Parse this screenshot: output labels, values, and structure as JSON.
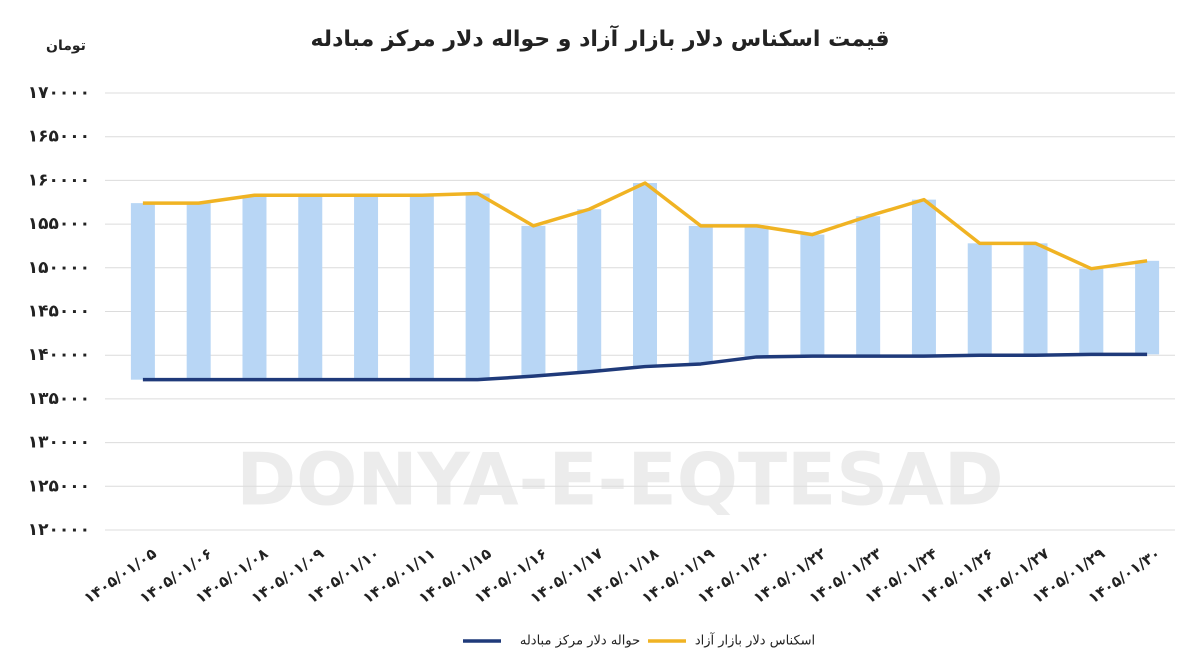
{
  "chart_data": {
    "type": "line",
    "title": "قیمت اسکناس دلار بازار آزاد و حواله دلار مرکز مبادله",
    "ylabel": "تومان",
    "watermark": "DONYA-E-EQTESAD",
    "categories": [
      "۱۴۰۵/۰۱/۰۵",
      "۱۴۰۵/۰۱/۰۶",
      "۱۴۰۵/۰۱/۰۸",
      "۱۴۰۵/۰۱/۰۹",
      "۱۴۰۵/۰۱/۱۰",
      "۱۴۰۵/۰۱/۱۱",
      "۱۴۰۵/۰۱/۱۵",
      "۱۴۰۵/۰۱/۱۶",
      "۱۴۰۵/۰۱/۱۷",
      "۱۴۰۵/۰۱/۱۸",
      "۱۴۰۵/۰۱/۱۹",
      "۱۴۰۵/۰۱/۲۰",
      "۱۴۰۵/۰۱/۲۲",
      "۱۴۰۵/۰۱/۲۳",
      "۱۴۰۵/۰۱/۲۴",
      "۱۴۰۵/۰۱/۲۶",
      "۱۴۰۵/۰۱/۲۷",
      "۱۴۰۵/۰۱/۲۹",
      "۱۴۰۵/۰۱/۳۰"
    ],
    "series": [
      {
        "name": "حواله دلار مرکز مبادله",
        "color": "#1f3a7a",
        "values": [
          137200,
          137200,
          137200,
          137200,
          137200,
          137200,
          137200,
          137600,
          138100,
          138700,
          139000,
          139800,
          139900,
          139900,
          139900,
          140000,
          140000,
          140100,
          140100
        ]
      },
      {
        "name": "اسکناس دلار بازار آزاد",
        "color": "#f0b323",
        "values": [
          157400,
          157400,
          158300,
          158300,
          158300,
          158300,
          158500,
          154800,
          156700,
          159700,
          154800,
          154800,
          153800,
          155900,
          157800,
          152800,
          152800,
          149900,
          150800
        ]
      }
    ],
    "range_bar_color": "#b8d6f5",
    "ylim": [
      120000,
      170000
    ],
    "yticks": [
      {
        "value": 120000,
        "label": "۱۲۰۰۰۰"
      },
      {
        "value": 125000,
        "label": "۱۲۵۰۰۰"
      },
      {
        "value": 130000,
        "label": "۱۳۰۰۰۰"
      },
      {
        "value": 135000,
        "label": "۱۳۵۰۰۰"
      },
      {
        "value": 140000,
        "label": "۱۴۰۰۰۰"
      },
      {
        "value": 145000,
        "label": "۱۴۵۰۰۰"
      },
      {
        "value": 150000,
        "label": "۱۵۰۰۰۰"
      },
      {
        "value": 155000,
        "label": "۱۵۵۰۰۰"
      },
      {
        "value": 160000,
        "label": "۱۶۰۰۰۰"
      },
      {
        "value": 165000,
        "label": "۱۶۵۰۰۰"
      },
      {
        "value": 170000,
        "label": "۱۷۰۰۰۰"
      }
    ],
    "grid": true
  }
}
